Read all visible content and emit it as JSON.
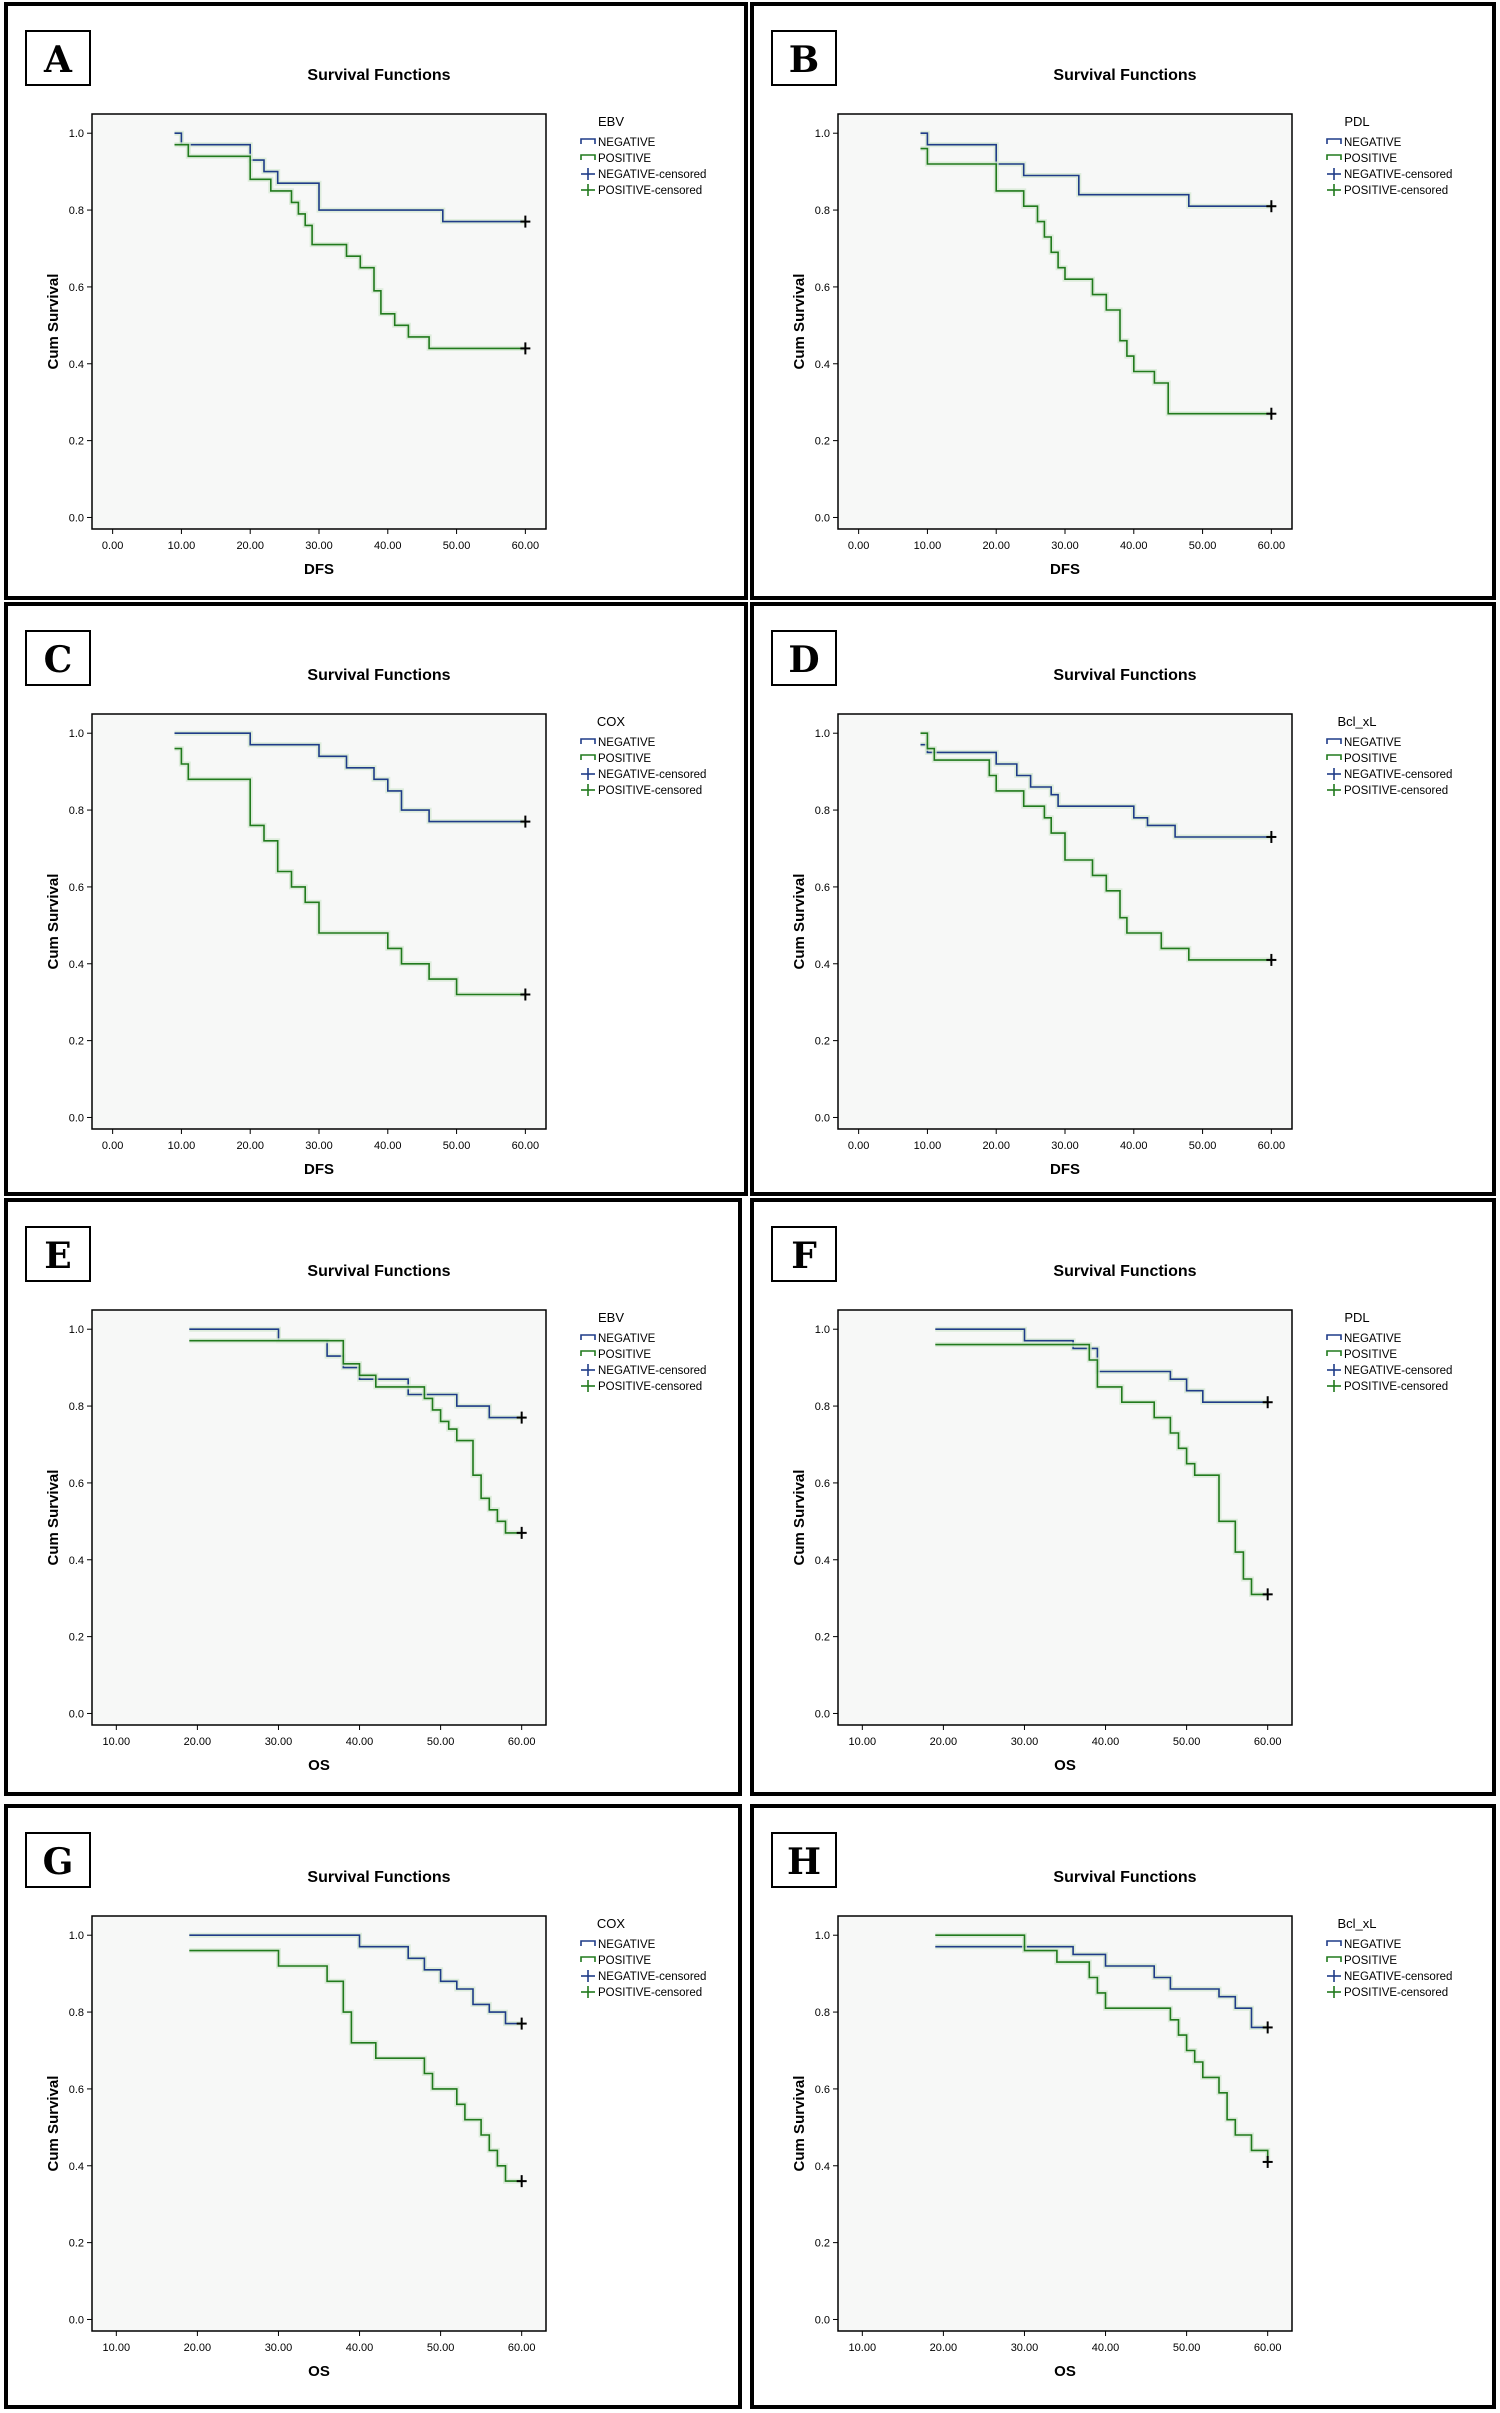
{
  "colors": {
    "negative": "#1f3c88",
    "positive": "#217a1d",
    "plot_bg": "#f7f8f7",
    "border": "#000000"
  },
  "chart_data": [
    {
      "panel": "A",
      "type": "line",
      "title": "Survival Functions",
      "xlabel": "DFS",
      "ylabel": "Cum Survival",
      "xlim": [
        -3,
        63
      ],
      "ylim": [
        -0.03,
        1.05
      ],
      "xticks": [
        "0.00",
        "10.00",
        "20.00",
        "30.00",
        "40.00",
        "50.00",
        "60.00"
      ],
      "xtick_values": [
        0,
        10,
        20,
        30,
        40,
        50,
        60
      ],
      "yticks": [
        "0.0",
        "0.2",
        "0.4",
        "0.6",
        "0.8",
        "1.0"
      ],
      "ytick_values": [
        0,
        0.2,
        0.4,
        0.6,
        0.8,
        1.0
      ],
      "legend_title": "EBV",
      "legend": [
        "NEGATIVE",
        "POSITIVE",
        "NEGATIVE-censored",
        "POSITIVE-censored"
      ],
      "series": [
        {
          "name": "NEGATIVE",
          "x": [
            9,
            10,
            20,
            22,
            24,
            26,
            30,
            48,
            60
          ],
          "y": [
            1.0,
            0.97,
            0.93,
            0.9,
            0.87,
            0.87,
            0.8,
            0.77,
            0.77
          ]
        },
        {
          "name": "POSITIVE",
          "x": [
            9,
            11,
            20,
            23,
            26,
            27,
            28,
            29,
            34,
            36,
            38,
            39,
            41,
            43,
            44,
            46,
            60
          ],
          "y": [
            0.97,
            0.94,
            0.88,
            0.85,
            0.82,
            0.79,
            0.76,
            0.71,
            0.68,
            0.65,
            0.59,
            0.53,
            0.5,
            0.47,
            0.47,
            0.44,
            0.44
          ]
        }
      ],
      "censored": {
        "NEGATIVE": [
          [
            60,
            0.77
          ]
        ],
        "POSITIVE": [
          [
            60,
            0.44
          ]
        ]
      }
    },
    {
      "panel": "B",
      "type": "line",
      "title": "Survival Functions",
      "xlabel": "DFS",
      "ylabel": "Cum Survival",
      "xlim": [
        -3,
        63
      ],
      "ylim": [
        -0.03,
        1.05
      ],
      "xticks": [
        "0.00",
        "10.00",
        "20.00",
        "30.00",
        "40.00",
        "50.00",
        "60.00"
      ],
      "xtick_values": [
        0,
        10,
        20,
        30,
        40,
        50,
        60
      ],
      "yticks": [
        "0.0",
        "0.2",
        "0.4",
        "0.6",
        "0.8",
        "1.0"
      ],
      "ytick_values": [
        0,
        0.2,
        0.4,
        0.6,
        0.8,
        1.0
      ],
      "legend_title": "PDL",
      "legend": [
        "NEGATIVE",
        "POSITIVE",
        "NEGATIVE-censored",
        "POSITIVE-censored"
      ],
      "series": [
        {
          "name": "NEGATIVE",
          "x": [
            9,
            10,
            20,
            24,
            32,
            48,
            60
          ],
          "y": [
            1.0,
            0.97,
            0.92,
            0.89,
            0.84,
            0.81,
            0.81
          ]
        },
        {
          "name": "POSITIVE",
          "x": [
            9,
            10,
            20,
            24,
            26,
            27,
            28,
            29,
            30,
            34,
            35,
            36,
            38,
            39,
            40,
            42,
            43,
            45,
            60
          ],
          "y": [
            0.96,
            0.92,
            0.85,
            0.81,
            0.77,
            0.73,
            0.69,
            0.65,
            0.62,
            0.58,
            0.58,
            0.54,
            0.46,
            0.42,
            0.38,
            0.38,
            0.35,
            0.27,
            0.27
          ]
        }
      ],
      "censored": {
        "NEGATIVE": [
          [
            60,
            0.81
          ]
        ],
        "POSITIVE": [
          [
            60,
            0.27
          ]
        ]
      }
    },
    {
      "panel": "C",
      "type": "line",
      "title": "Survival Functions",
      "xlabel": "DFS",
      "ylabel": "Cum Survival",
      "xlim": [
        -3,
        63
      ],
      "ylim": [
        -0.03,
        1.05
      ],
      "xticks": [
        "0.00",
        "10.00",
        "20.00",
        "30.00",
        "40.00",
        "50.00",
        "60.00"
      ],
      "xtick_values": [
        0,
        10,
        20,
        30,
        40,
        50,
        60
      ],
      "yticks": [
        "0.0",
        "0.2",
        "0.4",
        "0.6",
        "0.8",
        "1.0"
      ],
      "ytick_values": [
        0,
        0.2,
        0.4,
        0.6,
        0.8,
        1.0
      ],
      "legend_title": "COX",
      "legend": [
        "NEGATIVE",
        "POSITIVE",
        "NEGATIVE-censored",
        "POSITIVE-censored"
      ],
      "series": [
        {
          "name": "NEGATIVE",
          "x": [
            9,
            20,
            28,
            30,
            34,
            36,
            38,
            40,
            42,
            46,
            60
          ],
          "y": [
            1.0,
            0.97,
            0.97,
            0.94,
            0.91,
            0.91,
            0.88,
            0.85,
            0.8,
            0.77,
            0.77
          ]
        },
        {
          "name": "POSITIVE",
          "x": [
            9,
            10,
            11,
            20,
            22,
            24,
            26,
            28,
            30,
            40,
            42,
            44,
            46,
            50,
            60
          ],
          "y": [
            0.96,
            0.92,
            0.88,
            0.76,
            0.72,
            0.64,
            0.6,
            0.56,
            0.48,
            0.44,
            0.4,
            0.4,
            0.36,
            0.32,
            0.32
          ]
        }
      ],
      "censored": {
        "NEGATIVE": [
          [
            60,
            0.77
          ]
        ],
        "POSITIVE": [
          [
            60,
            0.32
          ]
        ]
      }
    },
    {
      "panel": "D",
      "type": "line",
      "title": "Survival Functions",
      "xlabel": "DFS",
      "ylabel": "Cum Survival",
      "xlim": [
        -3,
        63
      ],
      "ylim": [
        -0.03,
        1.05
      ],
      "xticks": [
        "0.00",
        "10.00",
        "20.00",
        "30.00",
        "40.00",
        "50.00",
        "60.00"
      ],
      "xtick_values": [
        0,
        10,
        20,
        30,
        40,
        50,
        60
      ],
      "yticks": [
        "0.0",
        "0.2",
        "0.4",
        "0.6",
        "0.8",
        "1.0"
      ],
      "ytick_values": [
        0,
        0.2,
        0.4,
        0.6,
        0.8,
        1.0
      ],
      "legend_title": "Bcl_xL",
      "legend": [
        "NEGATIVE",
        "POSITIVE",
        "NEGATIVE-censored",
        "POSITIVE-censored"
      ],
      "series": [
        {
          "name": "NEGATIVE",
          "x": [
            9,
            10,
            20,
            23,
            25,
            28,
            29,
            30,
            40,
            42,
            46,
            60
          ],
          "y": [
            0.97,
            0.95,
            0.92,
            0.89,
            0.86,
            0.84,
            0.81,
            0.81,
            0.78,
            0.76,
            0.73,
            0.73
          ]
        },
        {
          "name": "POSITIVE",
          "x": [
            9,
            10,
            11,
            19,
            20,
            24,
            27,
            28,
            30,
            34,
            36,
            38,
            39,
            40,
            44,
            48,
            60
          ],
          "y": [
            1.0,
            0.96,
            0.93,
            0.89,
            0.85,
            0.81,
            0.78,
            0.74,
            0.67,
            0.63,
            0.59,
            0.52,
            0.48,
            0.48,
            0.44,
            0.41,
            0.41
          ]
        }
      ],
      "censored": {
        "NEGATIVE": [
          [
            60,
            0.73
          ]
        ],
        "POSITIVE": [
          [
            60,
            0.41
          ]
        ]
      }
    },
    {
      "panel": "E",
      "type": "line",
      "title": "Survival Functions",
      "xlabel": "OS",
      "ylabel": "Cum Survival",
      "xlim": [
        7,
        63
      ],
      "ylim": [
        -0.03,
        1.05
      ],
      "xticks": [
        "10.00",
        "20.00",
        "30.00",
        "40.00",
        "50.00",
        "60.00"
      ],
      "xtick_values": [
        10,
        20,
        30,
        40,
        50,
        60
      ],
      "yticks": [
        "0.0",
        "0.2",
        "0.4",
        "0.6",
        "0.8",
        "1.0"
      ],
      "ytick_values": [
        0,
        0.2,
        0.4,
        0.6,
        0.8,
        1.0
      ],
      "legend_title": "EBV",
      "legend": [
        "NEGATIVE",
        "POSITIVE",
        "NEGATIVE-censored",
        "POSITIVE-censored"
      ],
      "series": [
        {
          "name": "NEGATIVE",
          "x": [
            19,
            30,
            36,
            38,
            40,
            44,
            46,
            52,
            56,
            60
          ],
          "y": [
            1.0,
            0.97,
            0.93,
            0.9,
            0.87,
            0.87,
            0.83,
            0.8,
            0.77,
            0.77
          ]
        },
        {
          "name": "POSITIVE",
          "x": [
            19,
            30,
            38,
            40,
            42,
            48,
            49,
            50,
            51,
            52,
            54,
            55,
            56,
            57,
            58,
            60
          ],
          "y": [
            0.97,
            0.97,
            0.91,
            0.88,
            0.85,
            0.82,
            0.79,
            0.76,
            0.74,
            0.71,
            0.62,
            0.56,
            0.53,
            0.5,
            0.47,
            0.47
          ]
        }
      ],
      "censored": {
        "NEGATIVE": [
          [
            60,
            0.77
          ]
        ],
        "POSITIVE": [
          [
            60,
            0.47
          ]
        ]
      }
    },
    {
      "panel": "F",
      "type": "line",
      "title": "Survival Functions",
      "xlabel": "OS",
      "ylabel": "Cum Survival",
      "xlim": [
        7,
        63
      ],
      "ylim": [
        -0.03,
        1.05
      ],
      "xticks": [
        "10.00",
        "20.00",
        "30.00",
        "40.00",
        "50.00",
        "60.00"
      ],
      "xtick_values": [
        10,
        20,
        30,
        40,
        50,
        60
      ],
      "yticks": [
        "0.0",
        "0.2",
        "0.4",
        "0.6",
        "0.8",
        "1.0"
      ],
      "ytick_values": [
        0,
        0.2,
        0.4,
        0.6,
        0.8,
        1.0
      ],
      "legend_title": "PDL",
      "legend": [
        "NEGATIVE",
        "POSITIVE",
        "NEGATIVE-censored",
        "POSITIVE-censored"
      ],
      "series": [
        {
          "name": "NEGATIVE",
          "x": [
            19,
            30,
            36,
            39,
            48,
            50,
            52,
            60
          ],
          "y": [
            1.0,
            0.97,
            0.95,
            0.89,
            0.87,
            0.84,
            0.81,
            0.81
          ]
        },
        {
          "name": "POSITIVE",
          "x": [
            19,
            38,
            39,
            42,
            46,
            48,
            49,
            50,
            51,
            52,
            54,
            56,
            57,
            58,
            60
          ],
          "y": [
            0.96,
            0.92,
            0.85,
            0.81,
            0.77,
            0.73,
            0.69,
            0.65,
            0.62,
            0.62,
            0.5,
            0.42,
            0.35,
            0.31,
            0.31
          ]
        }
      ],
      "censored": {
        "NEGATIVE": [
          [
            60,
            0.81
          ]
        ],
        "POSITIVE": [
          [
            60,
            0.31
          ]
        ]
      }
    },
    {
      "panel": "G",
      "type": "line",
      "title": "Survival Functions",
      "xlabel": "OS",
      "ylabel": "Cum Survival",
      "xlim": [
        7,
        63
      ],
      "ylim": [
        -0.03,
        1.05
      ],
      "xticks": [
        "10.00",
        "20.00",
        "30.00",
        "40.00",
        "50.00",
        "60.00"
      ],
      "xtick_values": [
        10,
        20,
        30,
        40,
        50,
        60
      ],
      "yticks": [
        "0.0",
        "0.2",
        "0.4",
        "0.6",
        "0.8",
        "1.0"
      ],
      "ytick_values": [
        0,
        0.2,
        0.4,
        0.6,
        0.8,
        1.0
      ],
      "legend_title": "COX",
      "legend": [
        "NEGATIVE",
        "POSITIVE",
        "NEGATIVE-censored",
        "POSITIVE-censored"
      ],
      "series": [
        {
          "name": "NEGATIVE",
          "x": [
            19,
            40,
            46,
            48,
            50,
            52,
            54,
            56,
            58,
            60
          ],
          "y": [
            1.0,
            0.97,
            0.94,
            0.91,
            0.88,
            0.86,
            0.82,
            0.8,
            0.77,
            0.77
          ]
        },
        {
          "name": "POSITIVE",
          "x": [
            19,
            30,
            36,
            38,
            39,
            40,
            42,
            48,
            49,
            50,
            52,
            53,
            54,
            55,
            56,
            57,
            58,
            60
          ],
          "y": [
            0.96,
            0.92,
            0.88,
            0.8,
            0.72,
            0.72,
            0.68,
            0.64,
            0.6,
            0.6,
            0.56,
            0.52,
            0.52,
            0.48,
            0.44,
            0.4,
            0.36,
            0.36
          ]
        }
      ],
      "censored": {
        "NEGATIVE": [
          [
            60,
            0.77
          ]
        ],
        "POSITIVE": [
          [
            60,
            0.36
          ]
        ]
      }
    },
    {
      "panel": "H",
      "type": "line",
      "title": "Survival Functions",
      "xlabel": "OS",
      "ylabel": "Cum Survival",
      "xlim": [
        7,
        63
      ],
      "ylim": [
        -0.03,
        1.05
      ],
      "xticks": [
        "10.00",
        "20.00",
        "30.00",
        "40.00",
        "50.00",
        "60.00"
      ],
      "xtick_values": [
        10,
        20,
        30,
        40,
        50,
        60
      ],
      "yticks": [
        "0.0",
        "0.2",
        "0.4",
        "0.6",
        "0.8",
        "1.0"
      ],
      "ytick_values": [
        0,
        0.2,
        0.4,
        0.6,
        0.8,
        1.0
      ],
      "legend_title": "Bcl_xL",
      "legend": [
        "NEGATIVE",
        "POSITIVE",
        "NEGATIVE-censored",
        "POSITIVE-censored"
      ],
      "series": [
        {
          "name": "NEGATIVE",
          "x": [
            19,
            30,
            36,
            40,
            46,
            48,
            52,
            54,
            56,
            58,
            60
          ],
          "y": [
            0.97,
            0.97,
            0.95,
            0.92,
            0.89,
            0.86,
            0.86,
            0.84,
            0.81,
            0.76,
            0.76
          ]
        },
        {
          "name": "POSITIVE",
          "x": [
            19,
            30,
            34,
            38,
            39,
            40,
            44,
            48,
            49,
            50,
            51,
            52,
            54,
            55,
            56,
            58,
            60
          ],
          "y": [
            1.0,
            0.96,
            0.93,
            0.89,
            0.85,
            0.81,
            0.81,
            0.78,
            0.74,
            0.7,
            0.67,
            0.63,
            0.59,
            0.52,
            0.48,
            0.44,
            0.41
          ]
        }
      ],
      "censored": {
        "NEGATIVE": [
          [
            60,
            0.76
          ]
        ],
        "POSITIVE": [
          [
            60,
            0.41
          ]
        ]
      }
    }
  ]
}
